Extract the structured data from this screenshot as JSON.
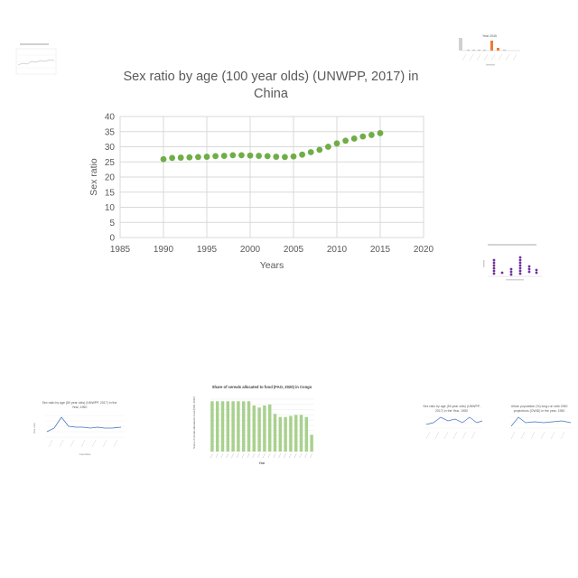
{
  "main_title": "Sex ratio by age (100 year olds) (UNWPP, 2017) in China",
  "colors": {
    "marker": "#70ad47",
    "grid": "#d9d9d9",
    "text": "#595959",
    "thumb_orange": "#ed7d31",
    "thumb_purple": "#7030a0",
    "thumb_blue": "#4472c4",
    "thumb_green": "#a9d18e"
  },
  "chart_data": {
    "type": "scatter",
    "title": "Sex ratio by age (100 year olds) (UNWPP, 2017) in China",
    "xlabel": "Years",
    "ylabel": "Sex ratio",
    "xlim": [
      1985,
      2020
    ],
    "ylim": [
      0,
      40
    ],
    "x_ticks": [
      1985,
      1990,
      1995,
      2000,
      2005,
      2010,
      2015,
      2020
    ],
    "y_ticks": [
      0,
      5,
      10,
      15,
      20,
      25,
      30,
      35,
      40
    ],
    "grid": true,
    "x": [
      1990,
      1991,
      1992,
      1993,
      1994,
      1995,
      1996,
      1997,
      1998,
      1999,
      2000,
      2001,
      2002,
      2003,
      2004,
      2005,
      2006,
      2007,
      2008,
      2009,
      2010,
      2011,
      2012,
      2013,
      2014,
      2015
    ],
    "y": [
      25.9,
      26.3,
      26.4,
      26.5,
      26.6,
      26.7,
      26.9,
      27.0,
      27.2,
      27.2,
      27.1,
      27.0,
      26.9,
      26.7,
      26.6,
      26.8,
      27.4,
      28.2,
      29.0,
      30.0,
      31.1,
      32.0,
      32.7,
      33.4,
      33.9,
      34.5
    ]
  },
  "thumbnails": {
    "top_left": {
      "title": ""
    },
    "top_right": {
      "title": "Year 2045"
    },
    "right_purple": {
      "title": ""
    },
    "bottom_left": {
      "title": "Sex ratio by age (50 year olds) (UNWPP, 2017) in the Year, 1950",
      "ylabel": "Sex ratio",
      "xlabel": "Countries"
    },
    "bottom_center": {
      "title": "Share of cereals allocated to food (FAO, 2020) in Congo",
      "ylabel": "Share of cereals allocated to food (FAO, 2020)",
      "xlabel": "Year"
    },
    "bottom_right_a": {
      "title": "Sex ratio by age (50 year olds) (UNWPP, 2017) in the Year, 1950"
    },
    "bottom_right_b": {
      "title": "Urban population (%) long-run with 2050 projections (OWID) in the year, 1950"
    }
  }
}
